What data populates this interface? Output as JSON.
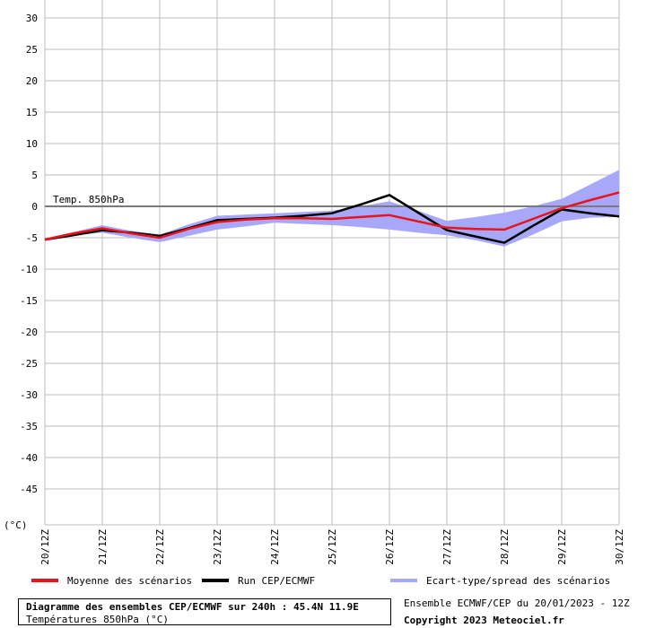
{
  "chart_data": {
    "type": "line",
    "title": "Diagramme des ensembles CEP/ECMWF sur 240h : 45.4N 11.9E",
    "subtitle": "Températures 850hPa (°C)",
    "ylabel": "(°C)",
    "ylim": [
      -50,
      30
    ],
    "yticks": [
      30,
      25,
      20,
      15,
      10,
      5,
      0,
      -5,
      -10,
      -15,
      -20,
      -25,
      -30,
      -35,
      -40,
      -45
    ],
    "categories": [
      "20/12Z",
      "21/12Z",
      "22/12Z",
      "23/12Z",
      "24/12Z",
      "25/12Z",
      "26/12Z",
      "27/12Z",
      "28/12Z",
      "29/12Z",
      "30/12Z"
    ],
    "x": [
      0,
      0.5,
      1,
      1.5,
      2,
      2.5,
      3,
      3.5,
      4,
      4.5,
      5,
      5.5,
      6,
      6.5,
      7,
      7.5,
      8,
      8.5,
      9,
      9.5,
      10
    ],
    "series": [
      {
        "name": "Moyenne des scénarios",
        "color": "#e8141b",
        "values": [
          -5.3,
          -4.3,
          -3.5,
          -4.3,
          -5.0,
          -3.6,
          -2.5,
          -2.1,
          -1.9,
          -1.9,
          -2.0,
          -1.7,
          -1.4,
          -2.4,
          -3.4,
          -3.6,
          -3.7,
          -2.0,
          -0.3,
          1.0,
          2.2
        ]
      },
      {
        "name": "Run CEP/ECMWF",
        "color": "#000000",
        "values": [
          -5.3,
          -4.6,
          -3.8,
          -4.2,
          -4.7,
          -3.5,
          -2.2,
          -2.0,
          -1.8,
          -1.5,
          -1.1,
          0.3,
          1.8,
          -1.0,
          -3.8,
          -4.8,
          -5.8,
          -3.1,
          -0.5,
          -1.1,
          -1.6
        ]
      },
      {
        "name": "Ecart-type/spread des scénarios",
        "color": "#a8a8fa",
        "band_upper": [
          -5.1,
          -4.1,
          -3.0,
          -3.9,
          -4.5,
          -2.9,
          -1.5,
          -1.3,
          -1.1,
          -0.9,
          -0.7,
          0.0,
          0.8,
          -0.7,
          -2.3,
          -1.7,
          -1.0,
          0.0,
          1.2,
          3.5,
          5.8
        ],
        "band_lower": [
          -5.5,
          -4.6,
          -4.2,
          -5.0,
          -5.7,
          -4.7,
          -3.7,
          -3.2,
          -2.6,
          -2.8,
          -3.0,
          -3.3,
          -3.7,
          -4.2,
          -4.6,
          -5.4,
          -6.4,
          -4.5,
          -2.4,
          -1.8,
          -1.7
        ]
      }
    ],
    "annotations": [
      {
        "text": "Temp. 850hPa",
        "y": 0
      }
    ],
    "grid": true,
    "legend_position": "bottom"
  },
  "footer": {
    "run_info": "Ensemble ECMWF/CEP du 20/01/2023 - 12Z",
    "copyright": "Copyright 2023 Meteociel.fr"
  }
}
